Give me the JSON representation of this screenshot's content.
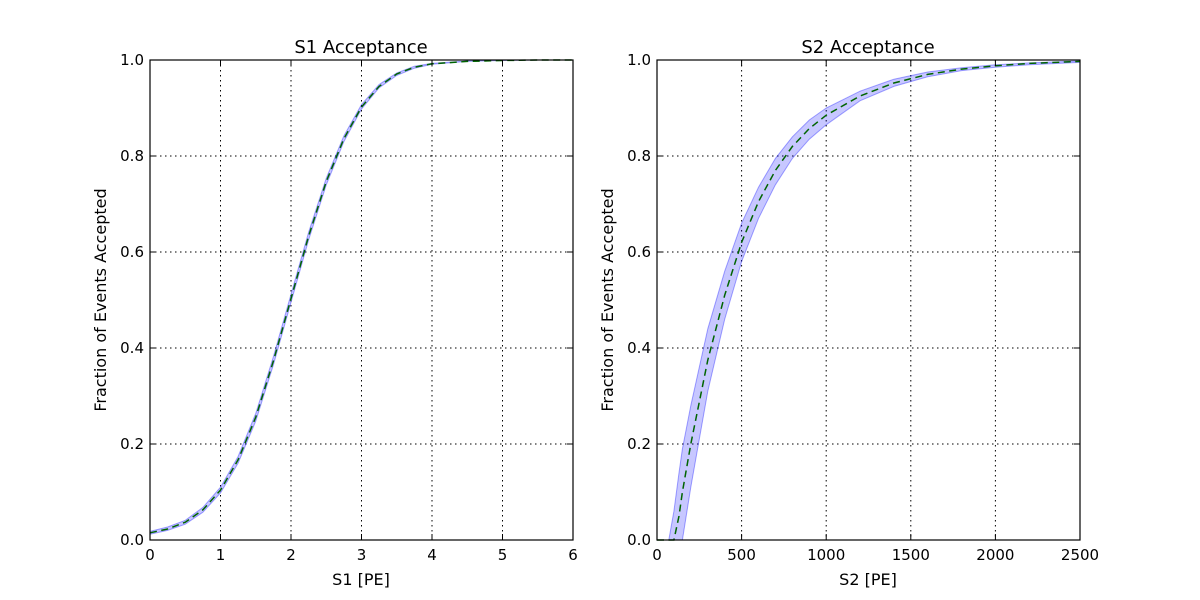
{
  "chart_data": [
    {
      "type": "line",
      "title": "S1 Acceptance",
      "xlabel": "S1 [PE]",
      "ylabel": "Fraction of Events Accepted",
      "xlim": [
        0,
        6
      ],
      "ylim": [
        0.0,
        1.0
      ],
      "xticks": [
        0,
        1,
        2,
        3,
        4,
        5,
        6
      ],
      "xtick_labels": [
        "0",
        "1",
        "2",
        "3",
        "4",
        "5",
        "6"
      ],
      "yticks": [
        0.0,
        0.2,
        0.4,
        0.6,
        0.8,
        1.0
      ],
      "ytick_labels": [
        "0.0",
        "0.2",
        "0.4",
        "0.6",
        "0.8",
        "1.0"
      ],
      "grid": true,
      "colors": {
        "band": "#0000ff",
        "median": "#006400"
      },
      "x": [
        0,
        0.25,
        0.5,
        0.75,
        1.0,
        1.25,
        1.5,
        1.75,
        2.0,
        2.25,
        2.5,
        2.75,
        3.0,
        3.25,
        3.5,
        3.75,
        4.0,
        4.5,
        5.0,
        5.5,
        6.0
      ],
      "series": [
        {
          "role": "band_lower",
          "values": [
            0.012,
            0.02,
            0.033,
            0.058,
            0.098,
            0.16,
            0.248,
            0.365,
            0.495,
            0.625,
            0.74,
            0.83,
            0.898,
            0.942,
            0.968,
            0.983,
            0.991,
            0.997,
            0.999,
            1.0,
            1.0
          ]
        },
        {
          "role": "band_upper",
          "values": [
            0.018,
            0.027,
            0.041,
            0.068,
            0.11,
            0.174,
            0.264,
            0.382,
            0.512,
            0.641,
            0.754,
            0.842,
            0.907,
            0.949,
            0.973,
            0.987,
            0.993,
            0.998,
            1.0,
            1.0,
            1.0
          ]
        },
        {
          "role": "median",
          "values": [
            0.015,
            0.023,
            0.037,
            0.063,
            0.104,
            0.167,
            0.256,
            0.373,
            0.503,
            0.633,
            0.747,
            0.836,
            0.902,
            0.945,
            0.971,
            0.985,
            0.992,
            0.997,
            0.999,
            1.0,
            1.0
          ]
        }
      ]
    },
    {
      "type": "line",
      "title": "S2 Acceptance",
      "xlabel": "S2 [PE]",
      "ylabel": "Fraction of Events Accepted",
      "xlim": [
        0,
        2500
      ],
      "ylim": [
        0.0,
        1.0
      ],
      "xticks": [
        0,
        500,
        1000,
        1500,
        2000,
        2500
      ],
      "xtick_labels": [
        "0",
        "500",
        "1000",
        "1500",
        "2000",
        "2500"
      ],
      "yticks": [
        0.0,
        0.2,
        0.4,
        0.6,
        0.8,
        1.0
      ],
      "ytick_labels": [
        "0.0",
        "0.2",
        "0.4",
        "0.6",
        "0.8",
        "1.0"
      ],
      "grid": true,
      "colors": {
        "band": "#0000ff",
        "median": "#006400"
      },
      "x": [
        0,
        50,
        70,
        100,
        130,
        150,
        200,
        300,
        400,
        500,
        600,
        700,
        800,
        900,
        1000,
        1200,
        1400,
        1600,
        1800,
        2000,
        2200,
        2500
      ],
      "series": [
        {
          "role": "band_lower",
          "values": [
            0,
            0,
            0,
            0,
            0,
            0,
            0.11,
            0.31,
            0.46,
            0.58,
            0.67,
            0.74,
            0.795,
            0.835,
            0.865,
            0.915,
            0.945,
            0.965,
            0.978,
            0.985,
            0.99,
            0.995
          ]
        },
        {
          "role": "band_upper",
          "values": [
            0,
            0,
            0,
            0.06,
            0.14,
            0.19,
            0.28,
            0.44,
            0.56,
            0.66,
            0.735,
            0.795,
            0.84,
            0.875,
            0.9,
            0.935,
            0.96,
            0.975,
            0.984,
            0.99,
            0.994,
            0.998
          ]
        },
        {
          "role": "median",
          "values": [
            0,
            0,
            0,
            0,
            0.05,
            0.1,
            0.2,
            0.375,
            0.51,
            0.62,
            0.705,
            0.77,
            0.82,
            0.857,
            0.885,
            0.925,
            0.952,
            0.97,
            0.981,
            0.988,
            0.993,
            0.997
          ]
        }
      ]
    }
  ]
}
